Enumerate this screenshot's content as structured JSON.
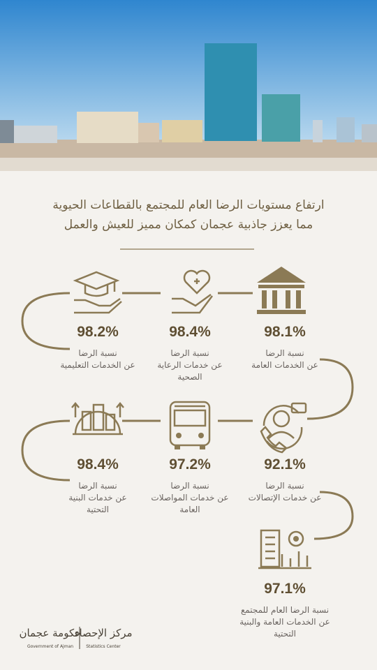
{
  "header": {
    "title_lines": [
      "ارتفاع مستويات الرضا العام للمجتمع بالقطاعات الحيوية",
      "مما يعزز جاذبية عجمان كمكان مميز للعيش والعمل"
    ]
  },
  "items": [
    {
      "value": "98.1%",
      "label_lines": [
        "نسبة الرضا",
        "عن الخدمات العامة"
      ]
    },
    {
      "value": "98.4%",
      "label_lines": [
        "نسبة الرضا",
        "عن خدمات الرعاية",
        "الصحية"
      ]
    },
    {
      "value": "98.2%",
      "label_lines": [
        "نسبة الرضا",
        "عن الخدمات التعليمية"
      ]
    },
    {
      "value": "92.1%",
      "label_lines": [
        "نسبة الرضا",
        "عن خدمات الإتصالات"
      ]
    },
    {
      "value": "97.2%",
      "label_lines": [
        "نسبة الرضا",
        "عن خدمات المواصلات",
        "العامة"
      ]
    },
    {
      "value": "98.4%",
      "label_lines": [
        "نسبة الرضا",
        "عن خدمات البنية",
        "التحتية"
      ]
    },
    {
      "value": "97.1%",
      "label_lines": [
        "نسبة الرضا العام للمجتمع",
        "عن الخدمات العامة والبنية",
        "التحتية"
      ]
    }
  ],
  "footer": {
    "government_ar": "حكومة عجمان",
    "government_en": "Government of Ajman",
    "center_ar": "مركز الإحصاء",
    "center_en": "Statistics Center"
  }
}
